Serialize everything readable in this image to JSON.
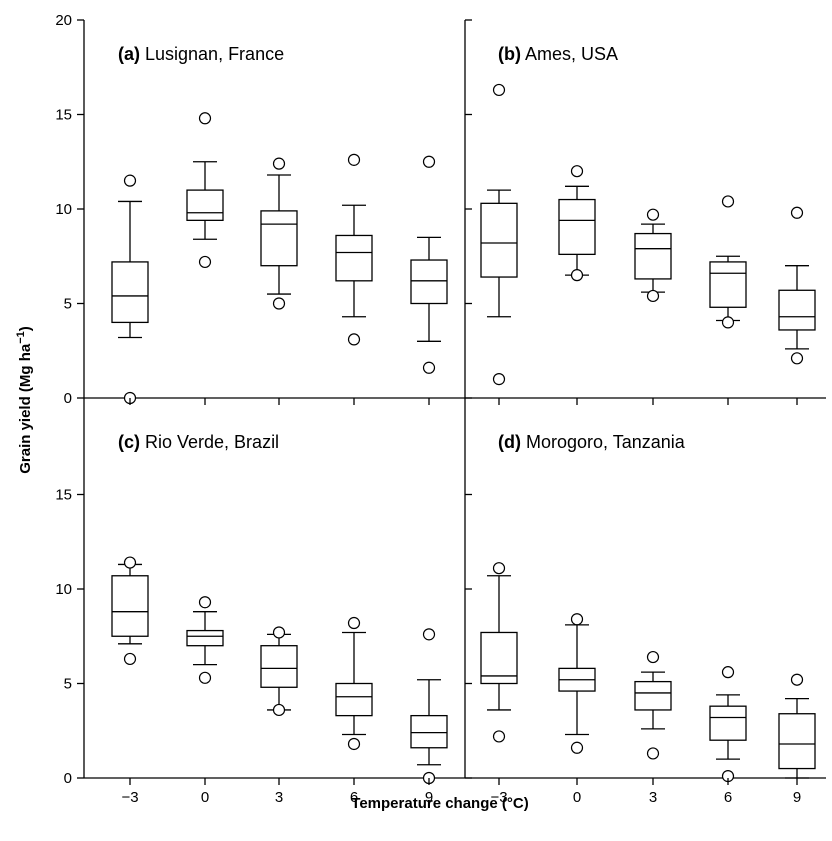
{
  "chart_data": [
    {
      "type": "box",
      "title_letter": "(a)",
      "title_site": "Lusignan, France",
      "categories": [
        "−3",
        "0",
        "3",
        "6",
        "9"
      ],
      "boxes": [
        {
          "whisker_low": 3.2,
          "q1": 4.0,
          "median": 5.4,
          "q3": 7.2,
          "whisker_high": 10.4,
          "outliers": [
            11.5,
            0.0
          ]
        },
        {
          "whisker_low": 8.4,
          "q1": 9.4,
          "median": 9.8,
          "q3": 11.0,
          "whisker_high": 12.5,
          "outliers": [
            14.8,
            7.2
          ]
        },
        {
          "whisker_low": 5.5,
          "q1": 7.0,
          "median": 9.2,
          "q3": 9.9,
          "whisker_high": 11.8,
          "outliers": [
            12.4,
            5.0
          ]
        },
        {
          "whisker_low": 4.3,
          "q1": 6.2,
          "median": 7.7,
          "q3": 8.6,
          "whisker_high": 10.2,
          "outliers": [
            12.6,
            3.1
          ]
        },
        {
          "whisker_low": 3.0,
          "q1": 5.0,
          "median": 6.2,
          "q3": 7.3,
          "whisker_high": 8.5,
          "outliers": [
            12.5,
            1.6
          ]
        }
      ]
    },
    {
      "type": "box",
      "title_letter": "(b)",
      "title_site": "Ames, USA",
      "categories": [
        "−3",
        "0",
        "3",
        "6",
        "9"
      ],
      "boxes": [
        {
          "whisker_low": 4.3,
          "q1": 6.4,
          "median": 8.2,
          "q3": 10.3,
          "whisker_high": 11.0,
          "outliers": [
            16.3,
            1.0
          ]
        },
        {
          "whisker_low": 6.5,
          "q1": 7.6,
          "median": 9.4,
          "q3": 10.5,
          "whisker_high": 11.2,
          "outliers": [
            12.0,
            6.5
          ]
        },
        {
          "whisker_low": 5.6,
          "q1": 6.3,
          "median": 7.9,
          "q3": 8.7,
          "whisker_high": 9.2,
          "outliers": [
            9.7,
            5.4
          ]
        },
        {
          "whisker_low": 4.1,
          "q1": 4.8,
          "median": 6.6,
          "q3": 7.2,
          "whisker_high": 7.5,
          "outliers": [
            10.4,
            4.0
          ]
        },
        {
          "whisker_low": 2.6,
          "q1": 3.6,
          "median": 4.3,
          "q3": 5.7,
          "whisker_high": 7.0,
          "outliers": [
            9.8,
            2.1
          ]
        }
      ]
    },
    {
      "type": "box",
      "title_letter": "(c)",
      "title_site": "Rio Verde, Brazil",
      "categories": [
        "−3",
        "0",
        "3",
        "6",
        "9"
      ],
      "boxes": [
        {
          "whisker_low": 7.1,
          "q1": 7.5,
          "median": 8.8,
          "q3": 10.7,
          "whisker_high": 11.3,
          "outliers": [
            11.4,
            6.3
          ]
        },
        {
          "whisker_low": 6.0,
          "q1": 7.0,
          "median": 7.5,
          "q3": 7.8,
          "whisker_high": 8.8,
          "outliers": [
            9.3,
            5.3
          ]
        },
        {
          "whisker_low": 3.6,
          "q1": 4.8,
          "median": 5.8,
          "q3": 7.0,
          "whisker_high": 7.6,
          "outliers": [
            7.7,
            3.6
          ]
        },
        {
          "whisker_low": 2.3,
          "q1": 3.3,
          "median": 4.3,
          "q3": 5.0,
          "whisker_high": 7.7,
          "outliers": [
            8.2,
            1.8
          ]
        },
        {
          "whisker_low": 0.7,
          "q1": 1.6,
          "median": 2.4,
          "q3": 3.3,
          "whisker_high": 5.2,
          "outliers": [
            7.6,
            0.0
          ]
        }
      ]
    },
    {
      "type": "box",
      "title_letter": "(d)",
      "title_site": "Morogoro, Tanzania",
      "categories": [
        "−3",
        "0",
        "3",
        "6",
        "9"
      ],
      "boxes": [
        {
          "whisker_low": 3.6,
          "q1": 5.0,
          "median": 5.4,
          "q3": 7.7,
          "whisker_high": 10.7,
          "outliers": [
            11.1,
            2.2
          ]
        },
        {
          "whisker_low": 2.3,
          "q1": 4.6,
          "median": 5.2,
          "q3": 5.8,
          "whisker_high": 8.1,
          "outliers": [
            8.4,
            1.6
          ]
        },
        {
          "whisker_low": 2.6,
          "q1": 3.6,
          "median": 4.5,
          "q3": 5.1,
          "whisker_high": 5.6,
          "outliers": [
            6.4,
            1.3
          ]
        },
        {
          "whisker_low": 1.0,
          "q1": 2.0,
          "median": 3.2,
          "q3": 3.8,
          "whisker_high": 4.4,
          "outliers": [
            5.6,
            0.1
          ]
        },
        {
          "whisker_low": 0.0,
          "q1": 0.5,
          "median": 1.8,
          "q3": 3.4,
          "whisker_high": 4.2,
          "outliers": [
            5.2
          ]
        }
      ]
    }
  ],
  "axes": {
    "xlabel": "Temperature change (°C)",
    "ylabel_main": "Grain yield (Mg ha",
    "ylabel_sup": "−1",
    "ylabel_close": ")",
    "ylim": [
      0,
      20
    ],
    "y_ticks_top": [
      "20",
      "15",
      "10",
      "5",
      "0"
    ],
    "y_ticks_bottom": [
      "15",
      "10",
      "5",
      "0"
    ],
    "x_ticks": [
      "−3",
      "0",
      "3",
      "6",
      "9"
    ]
  }
}
